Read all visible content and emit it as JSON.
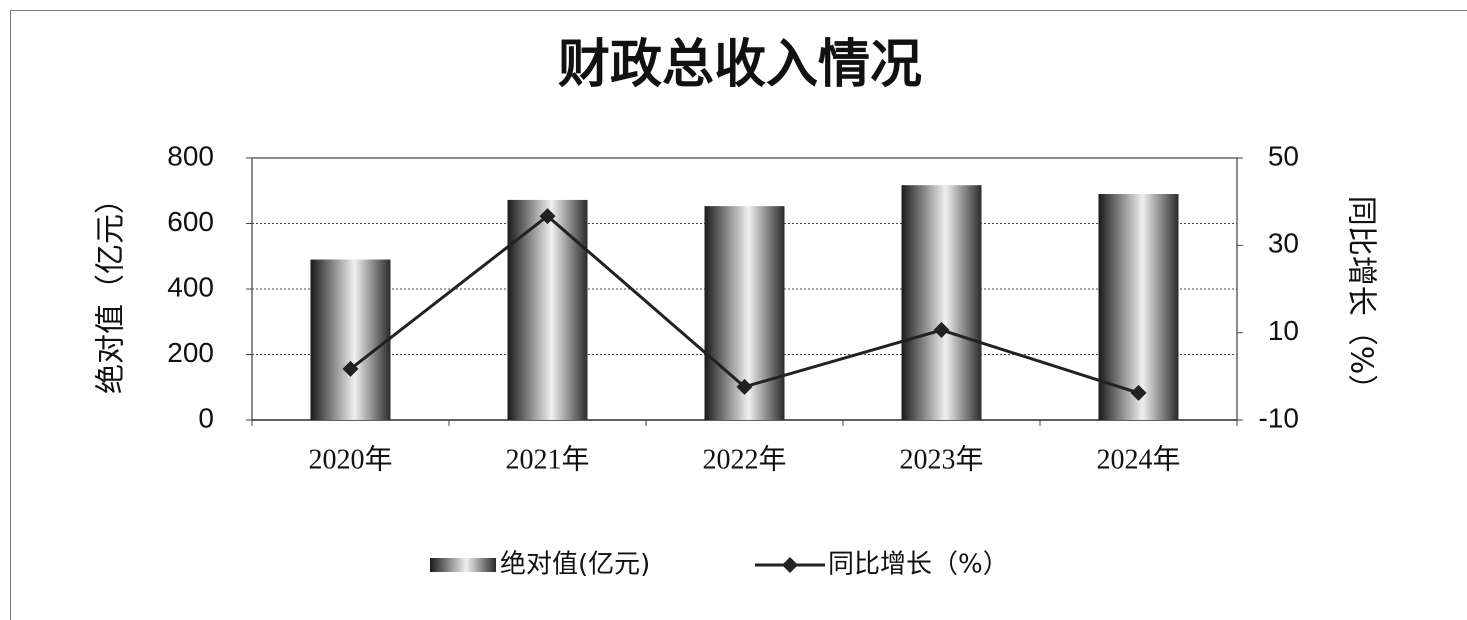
{
  "chart_data": {
    "type": "bar_line",
    "title": "财政总收入情况",
    "y_label": "绝对值（亿元）",
    "y2_label": "同比增长（%）",
    "categories": [
      "2020年",
      "2021年",
      "2022年",
      "2023年",
      "2024年"
    ],
    "series": [
      {
        "name": "绝对值(亿元)",
        "type": "bar",
        "color": "#888888",
        "values": [
          490,
          672,
          653,
          717,
          690
        ]
      },
      {
        "name": "同比增长（%）",
        "type": "line",
        "axis": "y2",
        "color": "#222222",
        "values": [
          1.7,
          36.7,
          -2.4,
          10.6,
          -3.8
        ]
      }
    ],
    "ylim": [
      0,
      800
    ],
    "yticks": [
      0,
      200,
      400,
      600,
      800
    ],
    "y2lim": [
      -10,
      50
    ],
    "y2ticks": [
      -10,
      10,
      30,
      50
    ],
    "grid": true,
    "legend": "bottom"
  }
}
